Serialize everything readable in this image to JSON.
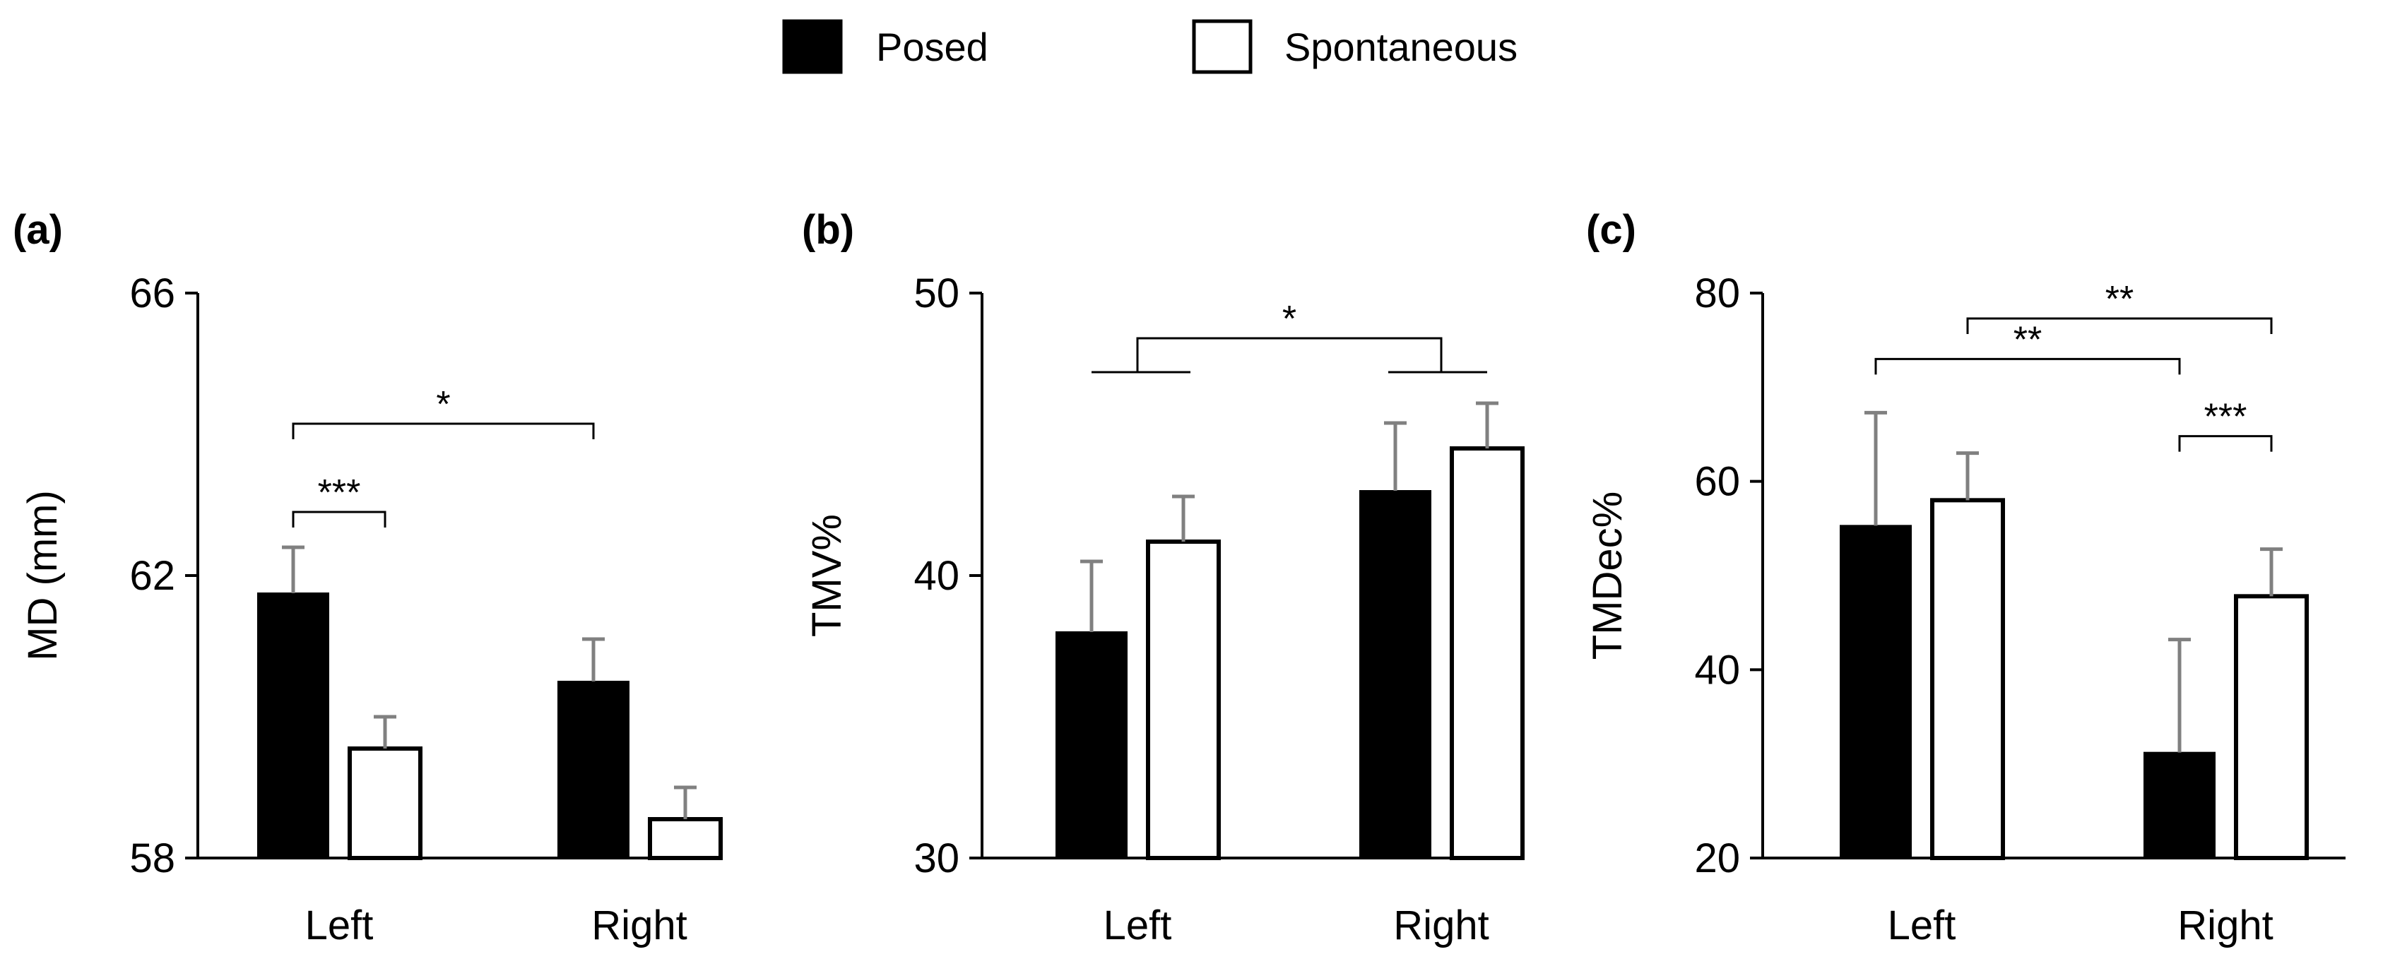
{
  "legend": [
    {
      "label": "Posed",
      "fill": "#000000"
    },
    {
      "label": "Spontaneous",
      "fill": "#ffffff"
    }
  ],
  "colors": {
    "posed": "#000000",
    "spontaneous": "#ffffff",
    "errorbar": "#808080",
    "axis": "#000000"
  },
  "chart_data": [
    {
      "type": "bar",
      "panel_label": "(a)",
      "ylabel": "MD (mm)",
      "ylim": [
        58,
        66
      ],
      "yticks": [
        "58",
        "62",
        "66"
      ],
      "categories": [
        "Left",
        "Right"
      ],
      "series": [
        {
          "name": "Posed",
          "values": [
            61.75,
            60.5
          ],
          "errors": [
            0.65,
            0.6
          ]
        },
        {
          "name": "Spontaneous",
          "values": [
            59.55,
            58.55
          ],
          "errors": [
            0.45,
            0.45
          ]
        }
      ],
      "annotations": [
        {
          "from": [
            0,
            0
          ],
          "to": [
            0,
            1
          ],
          "y": 62.9,
          "label": "***"
        },
        {
          "from": [
            0,
            0
          ],
          "to": [
            1,
            0
          ],
          "y": 64.15,
          "label": "*"
        }
      ]
    },
    {
      "type": "bar",
      "panel_label": "(b)",
      "ylabel": "TMV%",
      "ylim": [
        30,
        50
      ],
      "yticks": [
        "30",
        "40",
        "50"
      ],
      "categories": [
        "Left",
        "Right"
      ],
      "series": [
        {
          "name": "Posed",
          "values": [
            38.0,
            43.0
          ],
          "errors": [
            2.5,
            2.4
          ]
        },
        {
          "name": "Spontaneous",
          "values": [
            41.2,
            44.5
          ],
          "errors": [
            1.6,
            1.6
          ]
        }
      ],
      "annotations": [
        {
          "group_bracket": true,
          "left_group": 0,
          "right_group": 1,
          "y": 47.2,
          "stem_y": 48.4,
          "label": "*"
        }
      ]
    },
    {
      "type": "bar",
      "panel_label": "(c)",
      "ylabel": "TMDec%",
      "ylim": [
        20,
        80
      ],
      "yticks": [
        "20",
        "40",
        "60",
        "80"
      ],
      "categories": [
        "Left",
        "Right"
      ],
      "series": [
        {
          "name": "Posed",
          "values": [
            55.3,
            31.2
          ],
          "errors": [
            12.0,
            12.0
          ]
        },
        {
          "name": "Spontaneous",
          "values": [
            58.0,
            47.8
          ],
          "errors": [
            5.0,
            5.0
          ]
        }
      ],
      "annotations": [
        {
          "from": [
            1,
            0
          ],
          "to": [
            1,
            1
          ],
          "y": 64.8,
          "label": "***"
        },
        {
          "from": [
            0,
            0
          ],
          "to": [
            1,
            0
          ],
          "y": 73.0,
          "label": "**"
        },
        {
          "from": [
            0,
            1
          ],
          "to": [
            1,
            1
          ],
          "y": 77.3,
          "label": "**"
        }
      ]
    }
  ]
}
